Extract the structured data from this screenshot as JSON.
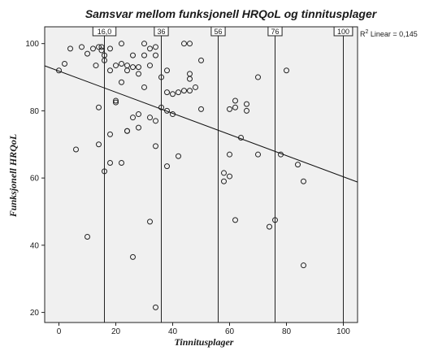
{
  "chart_data": {
    "type": "scatter",
    "title": "Samsvar mellom funksjonell HRQoL og tinnitusplager",
    "xlabel": "Tinnitusplager",
    "ylabel": "Funksjonell HRQoL",
    "xlim": [
      -5,
      105
    ],
    "ylim": [
      17,
      105
    ],
    "x_ticks": [
      0,
      20,
      40,
      60,
      80,
      100
    ],
    "y_ticks": [
      20,
      40,
      60,
      80,
      100
    ],
    "grid": false,
    "plot_background": "#f0f0f0",
    "reference_lines": [
      {
        "x": 16,
        "label": "16,0"
      },
      {
        "x": 36,
        "label": "36"
      },
      {
        "x": 56,
        "label": "56"
      },
      {
        "x": 76,
        "label": "76"
      },
      {
        "x": 100,
        "label": "100"
      }
    ],
    "fit_line": {
      "label": "R² Linear = 0,145",
      "label_prefix": "R",
      "label_sup": "2",
      "label_suffix": " Linear = 0,145",
      "x": [
        -5,
        105
      ],
      "y": [
        93.4,
        58.8
      ]
    },
    "points": [
      {
        "x": 0,
        "y": 92
      },
      {
        "x": 2,
        "y": 94
      },
      {
        "x": 4,
        "y": 98.5
      },
      {
        "x": 8,
        "y": 99
      },
      {
        "x": 10,
        "y": 97
      },
      {
        "x": 12,
        "y": 98.5
      },
      {
        "x": 13,
        "y": 93.5
      },
      {
        "x": 14,
        "y": 99
      },
      {
        "x": 15,
        "y": 99
      },
      {
        "x": 15,
        "y": 98
      },
      {
        "x": 16,
        "y": 95
      },
      {
        "x": 16,
        "y": 96.5
      },
      {
        "x": 18,
        "y": 92
      },
      {
        "x": 18,
        "y": 98.5
      },
      {
        "x": 20,
        "y": 93.5
      },
      {
        "x": 22,
        "y": 100
      },
      {
        "x": 22,
        "y": 94
      },
      {
        "x": 24,
        "y": 93.5
      },
      {
        "x": 24,
        "y": 92
      },
      {
        "x": 26,
        "y": 96.5
      },
      {
        "x": 26,
        "y": 93
      },
      {
        "x": 28,
        "y": 93
      },
      {
        "x": 28,
        "y": 91
      },
      {
        "x": 30,
        "y": 96.5
      },
      {
        "x": 30,
        "y": 100
      },
      {
        "x": 32,
        "y": 98.5
      },
      {
        "x": 32,
        "y": 93.5
      },
      {
        "x": 34,
        "y": 96.5
      },
      {
        "x": 34,
        "y": 99
      },
      {
        "x": 44,
        "y": 100
      },
      {
        "x": 46,
        "y": 100
      },
      {
        "x": 50,
        "y": 95
      },
      {
        "x": 46,
        "y": 91
      },
      {
        "x": 46,
        "y": 89.5
      },
      {
        "x": 48,
        "y": 87
      },
      {
        "x": 36,
        "y": 90
      },
      {
        "x": 38,
        "y": 92
      },
      {
        "x": 22,
        "y": 88.5
      },
      {
        "x": 30,
        "y": 87
      },
      {
        "x": 38,
        "y": 85.5
      },
      {
        "x": 40,
        "y": 85
      },
      {
        "x": 42,
        "y": 85.5
      },
      {
        "x": 44,
        "y": 86
      },
      {
        "x": 46,
        "y": 86
      },
      {
        "x": 36,
        "y": 81
      },
      {
        "x": 38,
        "y": 80
      },
      {
        "x": 40,
        "y": 79
      },
      {
        "x": 14,
        "y": 81
      },
      {
        "x": 20,
        "y": 83
      },
      {
        "x": 20,
        "y": 82.5
      },
      {
        "x": 26,
        "y": 78
      },
      {
        "x": 28,
        "y": 79
      },
      {
        "x": 32,
        "y": 78
      },
      {
        "x": 34,
        "y": 77
      },
      {
        "x": 18,
        "y": 73
      },
      {
        "x": 24,
        "y": 74
      },
      {
        "x": 24,
        "y": 74
      },
      {
        "x": 28,
        "y": 75
      },
      {
        "x": 14,
        "y": 70
      },
      {
        "x": 6,
        "y": 68.5
      },
      {
        "x": 34,
        "y": 69.5
      },
      {
        "x": 42,
        "y": 66.5
      },
      {
        "x": 38,
        "y": 63.5
      },
      {
        "x": 18,
        "y": 64.5
      },
      {
        "x": 22,
        "y": 64.5
      },
      {
        "x": 16,
        "y": 62
      },
      {
        "x": 50,
        "y": 80.5
      },
      {
        "x": 60,
        "y": 80.5
      },
      {
        "x": 62,
        "y": 81
      },
      {
        "x": 62,
        "y": 83
      },
      {
        "x": 66,
        "y": 82
      },
      {
        "x": 66,
        "y": 80
      },
      {
        "x": 70,
        "y": 90
      },
      {
        "x": 80,
        "y": 92
      },
      {
        "x": 64,
        "y": 72
      },
      {
        "x": 60,
        "y": 67
      },
      {
        "x": 70,
        "y": 67
      },
      {
        "x": 78,
        "y": 67
      },
      {
        "x": 84,
        "y": 64
      },
      {
        "x": 86,
        "y": 59
      },
      {
        "x": 58,
        "y": 61.5
      },
      {
        "x": 58,
        "y": 59
      },
      {
        "x": 60,
        "y": 60.5
      },
      {
        "x": 62,
        "y": 47.5
      },
      {
        "x": 74,
        "y": 45.5
      },
      {
        "x": 76,
        "y": 47.5
      },
      {
        "x": 32,
        "y": 47
      },
      {
        "x": 10,
        "y": 42.5
      },
      {
        "x": 26,
        "y": 36.5
      },
      {
        "x": 86,
        "y": 34
      },
      {
        "x": 34,
        "y": 21.5
      }
    ]
  }
}
